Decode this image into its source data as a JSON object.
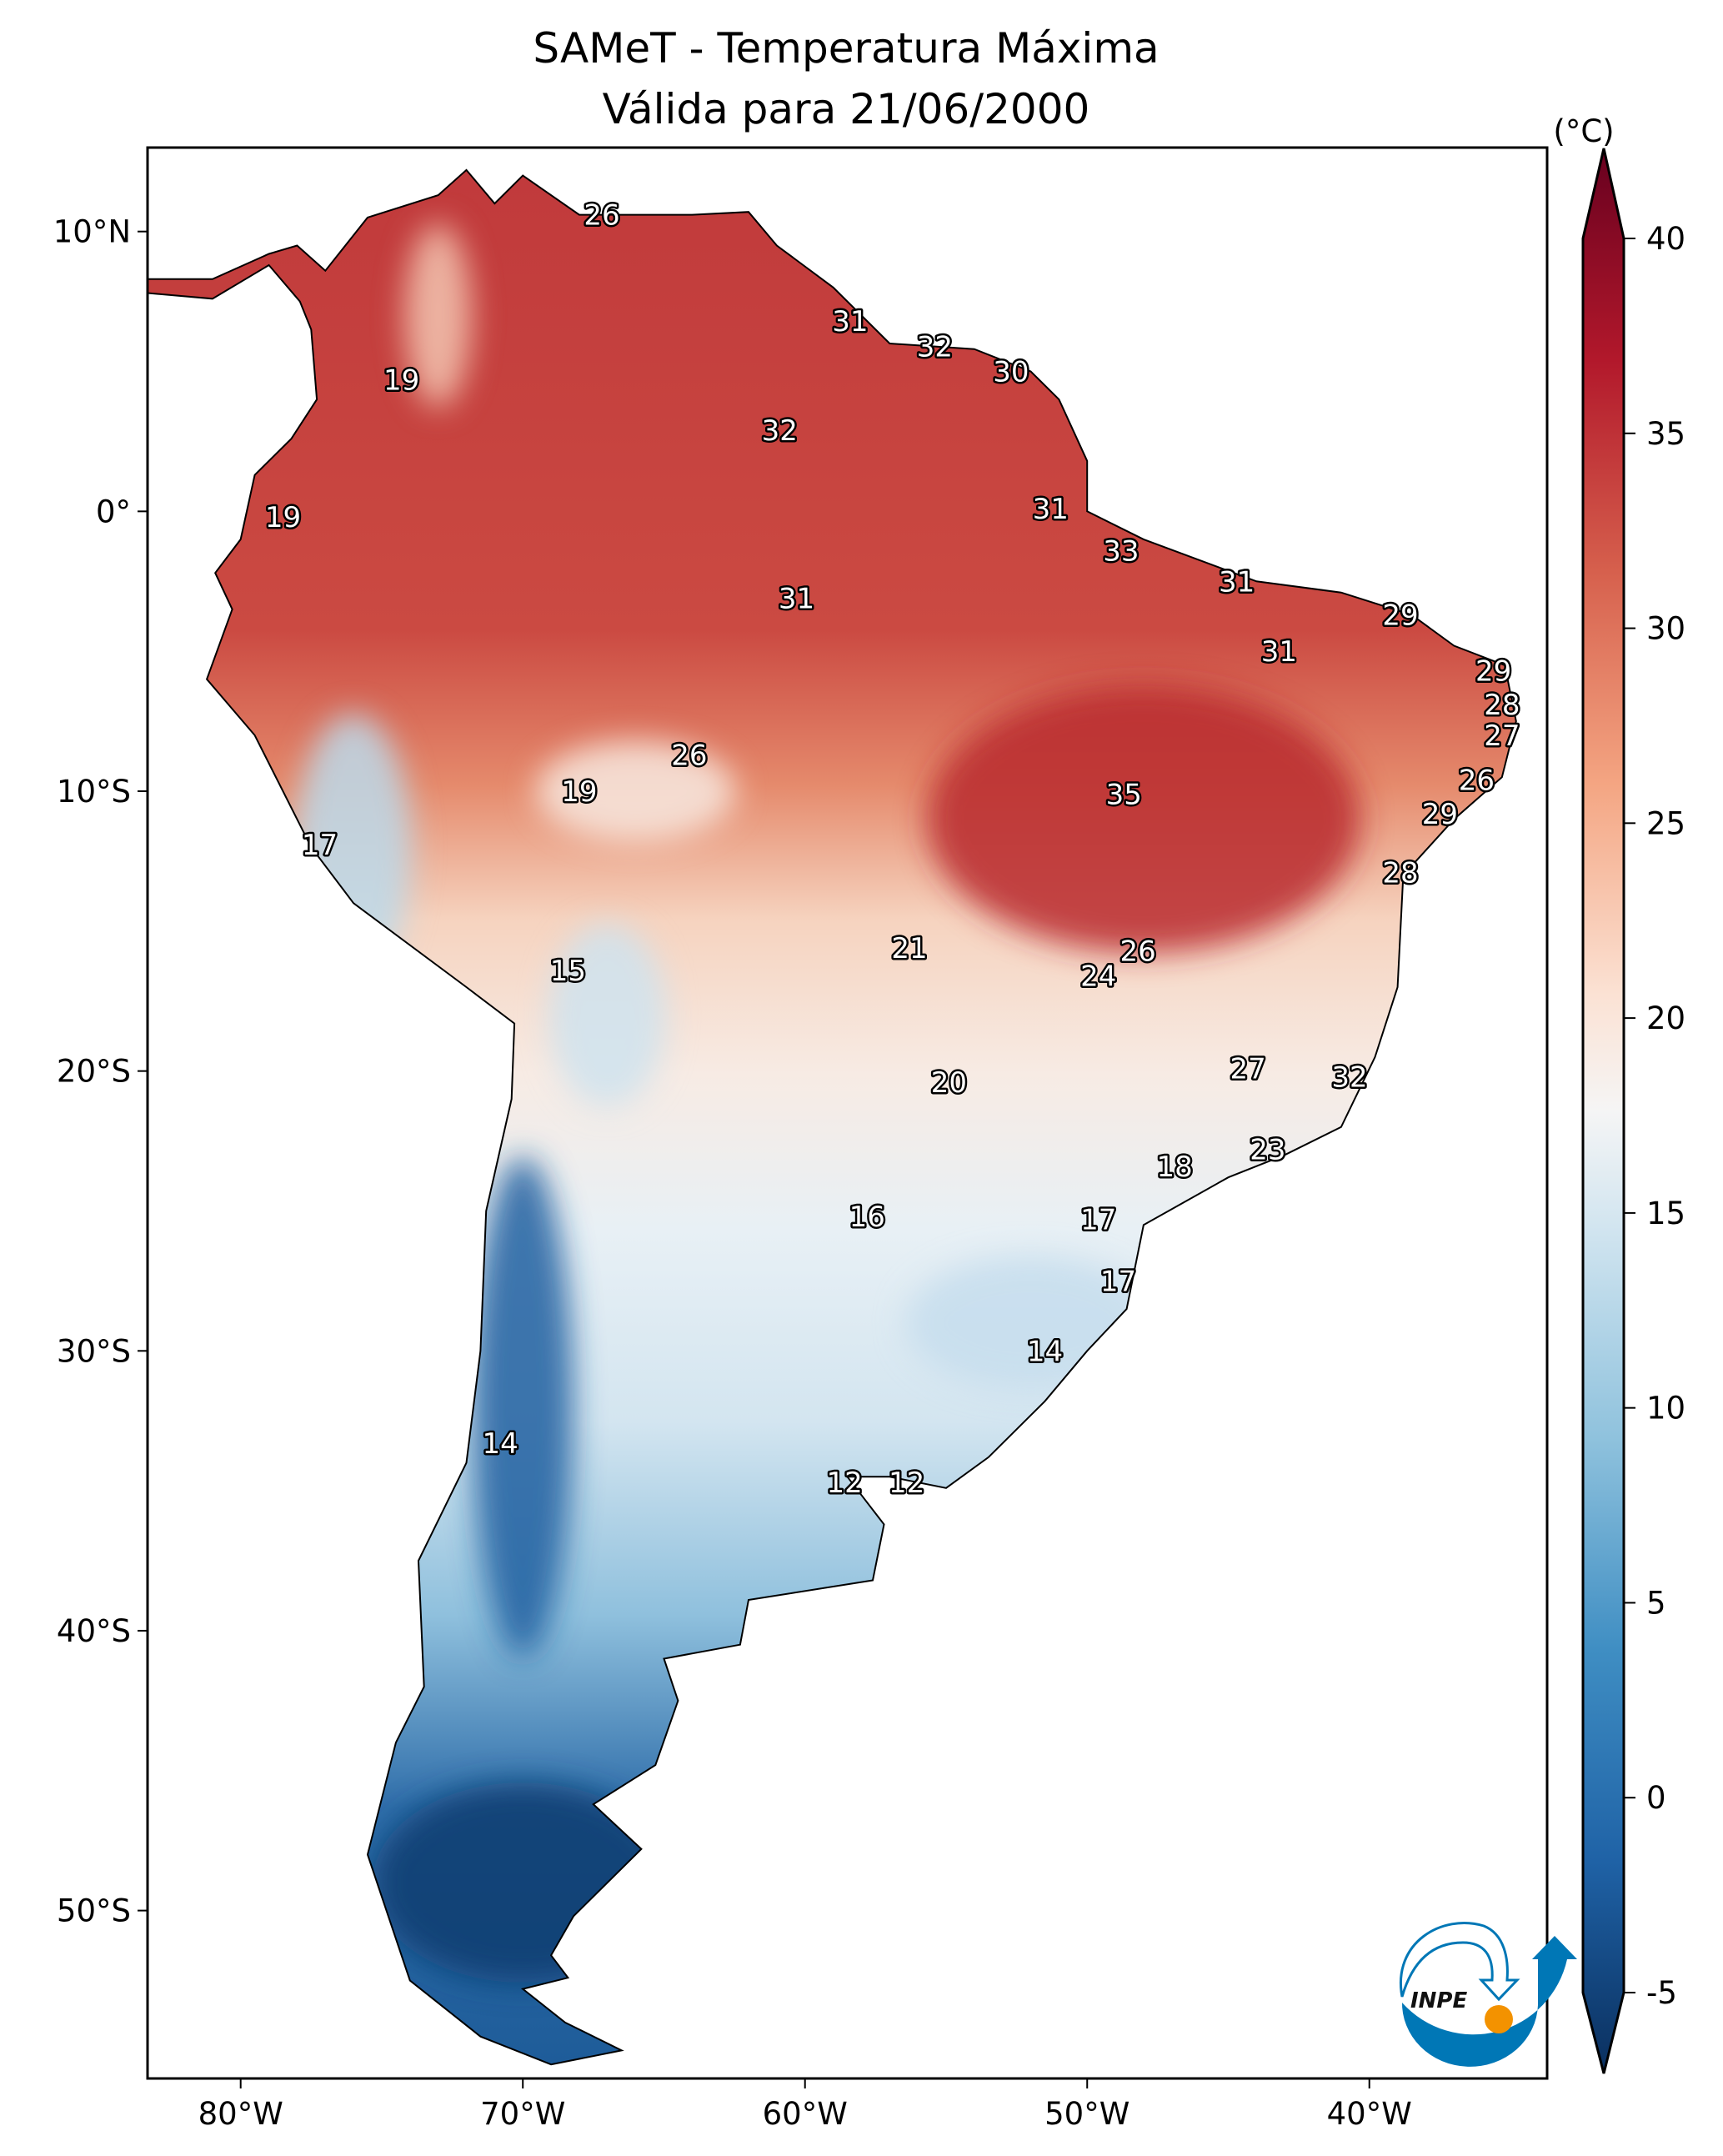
{
  "title": {
    "line1": "SAMeT - Temperatura Máxima",
    "line2": "Válida para 21/06/2000"
  },
  "colorbar": {
    "unit_label": "(°C)",
    "ticks": [
      -5,
      0,
      5,
      10,
      15,
      20,
      25,
      30,
      35,
      40
    ],
    "tick_labels": [
      "-5",
      "0",
      "5",
      "10",
      "15",
      "20",
      "25",
      "30",
      "35",
      "40"
    ],
    "range": [
      -5,
      40
    ],
    "extend": "both",
    "colormap": "RdBu_r"
  },
  "logo": {
    "text": "INPE",
    "colors": {
      "blue": "#0077b6",
      "orange": "#f39200"
    }
  },
  "chart_data": {
    "type": "map",
    "variable": "Temperatura Máxima",
    "unit": "°C",
    "lon_range": [
      -83.3,
      -33.7
    ],
    "lat_range": [
      -56,
      13
    ],
    "x_ticks": [
      -80,
      -70,
      -60,
      -50,
      -40
    ],
    "x_tick_labels": [
      "80°W",
      "70°W",
      "60°W",
      "50°W",
      "40°W"
    ],
    "y_ticks": [
      10,
      0,
      -10,
      -20,
      -30,
      -40,
      -50
    ],
    "y_tick_labels": [
      "10°N",
      "0°",
      "10°S",
      "20°S",
      "30°S",
      "40°S",
      "50°S"
    ],
    "point_labels": [
      {
        "lon": -67.2,
        "lat": 10.6,
        "value": "26"
      },
      {
        "lon": -58.4,
        "lat": 6.8,
        "value": "31"
      },
      {
        "lon": -55.4,
        "lat": 5.9,
        "value": "32"
      },
      {
        "lon": -52.7,
        "lat": 5.0,
        "value": "30"
      },
      {
        "lon": -74.3,
        "lat": 4.7,
        "value": "19"
      },
      {
        "lon": -60.9,
        "lat": 2.9,
        "value": "32"
      },
      {
        "lon": -78.5,
        "lat": -0.2,
        "value": "19"
      },
      {
        "lon": -51.3,
        "lat": 0.1,
        "value": "31"
      },
      {
        "lon": -48.8,
        "lat": -1.4,
        "value": "33"
      },
      {
        "lon": -60.3,
        "lat": -3.1,
        "value": "31"
      },
      {
        "lon": -44.7,
        "lat": -2.5,
        "value": "31"
      },
      {
        "lon": -38.9,
        "lat": -3.7,
        "value": "29"
      },
      {
        "lon": -43.2,
        "lat": -5.0,
        "value": "31"
      },
      {
        "lon": -35.6,
        "lat": -5.7,
        "value": "29"
      },
      {
        "lon": -35.3,
        "lat": -6.9,
        "value": "28"
      },
      {
        "lon": -35.3,
        "lat": -8.0,
        "value": "27"
      },
      {
        "lon": -64.1,
        "lat": -8.7,
        "value": "26"
      },
      {
        "lon": -68.0,
        "lat": -10.0,
        "value": "19"
      },
      {
        "lon": -48.7,
        "lat": -10.1,
        "value": "35"
      },
      {
        "lon": -36.2,
        "lat": -9.6,
        "value": "26"
      },
      {
        "lon": -37.5,
        "lat": -10.8,
        "value": "29"
      },
      {
        "lon": -77.2,
        "lat": -11.9,
        "value": "17"
      },
      {
        "lon": -38.9,
        "lat": -12.9,
        "value": "28"
      },
      {
        "lon": -56.3,
        "lat": -15.6,
        "value": "21"
      },
      {
        "lon": -48.2,
        "lat": -15.7,
        "value": "26"
      },
      {
        "lon": -49.6,
        "lat": -16.6,
        "value": "24"
      },
      {
        "lon": -68.4,
        "lat": -16.4,
        "value": "15"
      },
      {
        "lon": -54.9,
        "lat": -20.4,
        "value": "20"
      },
      {
        "lon": -44.3,
        "lat": -19.9,
        "value": "27"
      },
      {
        "lon": -40.7,
        "lat": -20.2,
        "value": "32"
      },
      {
        "lon": -43.6,
        "lat": -22.8,
        "value": "23"
      },
      {
        "lon": -46.9,
        "lat": -23.4,
        "value": "18"
      },
      {
        "lon": -57.8,
        "lat": -25.2,
        "value": "16"
      },
      {
        "lon": -49.6,
        "lat": -25.3,
        "value": "17"
      },
      {
        "lon": -48.9,
        "lat": -27.5,
        "value": "17"
      },
      {
        "lon": -51.5,
        "lat": -30.0,
        "value": "14"
      },
      {
        "lon": -70.8,
        "lat": -33.3,
        "value": "14"
      },
      {
        "lon": -58.6,
        "lat": -34.7,
        "value": "12"
      },
      {
        "lon": -56.4,
        "lat": -34.7,
        "value": "12"
      }
    ]
  }
}
